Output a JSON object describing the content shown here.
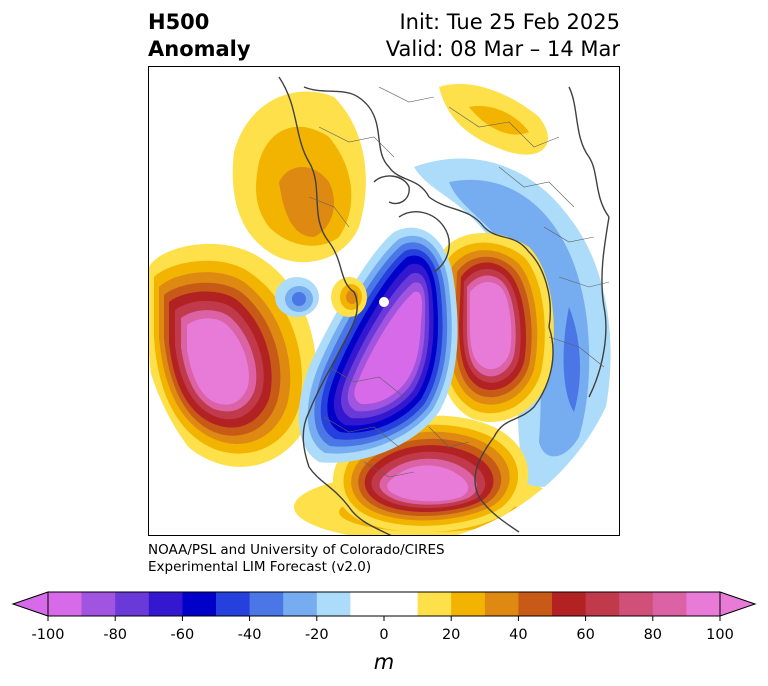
{
  "title": {
    "left_line1": "H500",
    "left_line2": "Anomaly",
    "right_line1": "Init: Tue 25 Feb 2025",
    "right_line2": "Valid: 08 Mar – 14 Mar"
  },
  "credit": {
    "line1": "NOAA/PSL and University of Colorado/CIRES",
    "line2": "Experimental LIM Forecast (v2.0)"
  },
  "colorbar": {
    "unit": "m",
    "ticks": [
      "-100",
      "-80",
      "-60",
      "-40",
      "-20",
      "0",
      "20",
      "40",
      "60",
      "80",
      "100"
    ],
    "bins": [
      {
        "from": -100,
        "to": -90,
        "color": "#d66ae8"
      },
      {
        "from": -90,
        "to": -80,
        "color": "#a154e0"
      },
      {
        "from": -80,
        "to": -70,
        "color": "#6a3ad8"
      },
      {
        "from": -70,
        "to": -60,
        "color": "#3418d0"
      },
      {
        "from": -60,
        "to": -50,
        "color": "#0000c8"
      },
      {
        "from": -50,
        "to": -40,
        "color": "#2540dc"
      },
      {
        "from": -40,
        "to": -30,
        "color": "#4a76e6"
      },
      {
        "from": -30,
        "to": -20,
        "color": "#76acf0"
      },
      {
        "from": -20,
        "to": -10,
        "color": "#acdcfa"
      },
      {
        "from": -10,
        "to": 10,
        "color": "#ffffff"
      },
      {
        "from": 10,
        "to": 20,
        "color": "#fde04a"
      },
      {
        "from": 20,
        "to": 30,
        "color": "#f2b400"
      },
      {
        "from": 30,
        "to": 40,
        "color": "#de8a12"
      },
      {
        "from": 40,
        "to": 50,
        "color": "#c85a18"
      },
      {
        "from": 50,
        "to": 60,
        "color": "#b22222"
      },
      {
        "from": 60,
        "to": 70,
        "color": "#c03a4c"
      },
      {
        "from": 70,
        "to": 80,
        "color": "#cf5078"
      },
      {
        "from": 80,
        "to": 90,
        "color": "#dc62a6"
      },
      {
        "from": 90,
        "to": 100,
        "color": "#e87ad8"
      }
    ],
    "extend_low_color": "#d66ae8",
    "extend_high_color": "#e87ad8"
  },
  "map": {
    "projection": "polar-stereographic-north",
    "field": "500-hPa geopotential height anomaly",
    "features": [
      {
        "name": "positive-anomaly-north-pacific",
        "peak": 100,
        "region": "North Pacific"
      },
      {
        "name": "positive-anomaly-europe",
        "peak": 100,
        "region": "Europe / Scandinavia"
      },
      {
        "name": "positive-anomaly-central-asia",
        "peak": 100,
        "region": "Central Asia"
      },
      {
        "name": "positive-anomaly-north-atlantic",
        "peak": 30,
        "region": "North Atlantic"
      },
      {
        "name": "negative-anomaly-north-america",
        "peak": -100,
        "region": "Canada / North America"
      },
      {
        "name": "negative-anomaly-siberia",
        "peak": -30,
        "region": "Siberia / East Asia"
      }
    ]
  }
}
